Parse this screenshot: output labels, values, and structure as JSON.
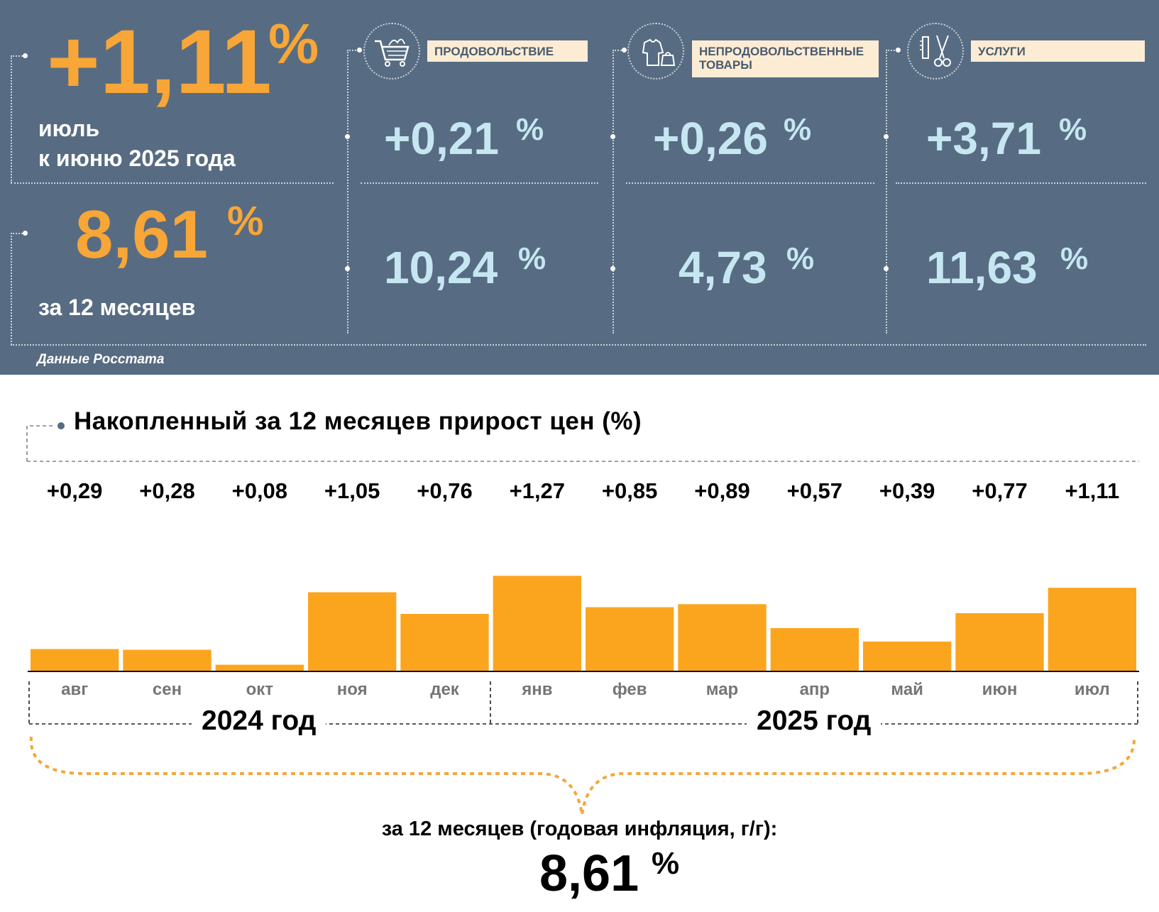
{
  "colors": {
    "panel_bg": "#576c82",
    "accent_orange": "#f7a637",
    "value_blue": "#c6e6f2",
    "label_bg": "#fdecd4",
    "bar": "#fba51e"
  },
  "summary": {
    "monthly": {
      "value": "+1,11",
      "unit": "%",
      "line1": "июль",
      "line2": "к июню 2025 года"
    },
    "annual": {
      "value": "8,61",
      "unit": "%",
      "caption": "за 12 месяцев"
    }
  },
  "categories": [
    {
      "name": "ПРОДОВОЛЬСТВИЕ",
      "icon": "shopping-cart-icon",
      "monthly": "+0,21",
      "annual": "10,24",
      "unit": "%"
    },
    {
      "name": "НЕПРОДОВОЛЬСТВЕННЫЕ ТОВАРЫ",
      "icon": "clothes-icon",
      "monthly": "+0,26",
      "annual": "4,73",
      "unit": "%"
    },
    {
      "name": "УСЛУГИ",
      "icon": "scissors-comb-icon",
      "monthly": "+3,71",
      "annual": "11,63",
      "unit": "%"
    }
  ],
  "source": "Данные Росстата",
  "chart_data": {
    "type": "bar",
    "title": "Накопленный за 12 месяцев прирост цен (%)",
    "categories": [
      "авг",
      "сен",
      "окт",
      "ноя",
      "дек",
      "янв",
      "фев",
      "мар",
      "апр",
      "май",
      "июн",
      "июл"
    ],
    "values": [
      0.29,
      0.28,
      0.08,
      1.05,
      0.76,
      1.27,
      0.85,
      0.89,
      0.57,
      0.39,
      0.77,
      1.11
    ],
    "value_labels": [
      "+0,29",
      "+0,28",
      "+0,08",
      "+1,05",
      "+0,76",
      "+1,27",
      "+0,85",
      "+0,89",
      "+0,57",
      "+0,39",
      "+0,77",
      "+1,11"
    ],
    "groups": [
      {
        "label": "2024 год",
        "months": 5
      },
      {
        "label": "2025 год",
        "months": 7
      }
    ],
    "ylim": [
      0,
      1.33
    ],
    "grid": false,
    "annual_caption": "за 12 месяцев (годовая инфляция, г/г):",
    "annual_value": "8,61",
    "annual_unit": "%"
  }
}
